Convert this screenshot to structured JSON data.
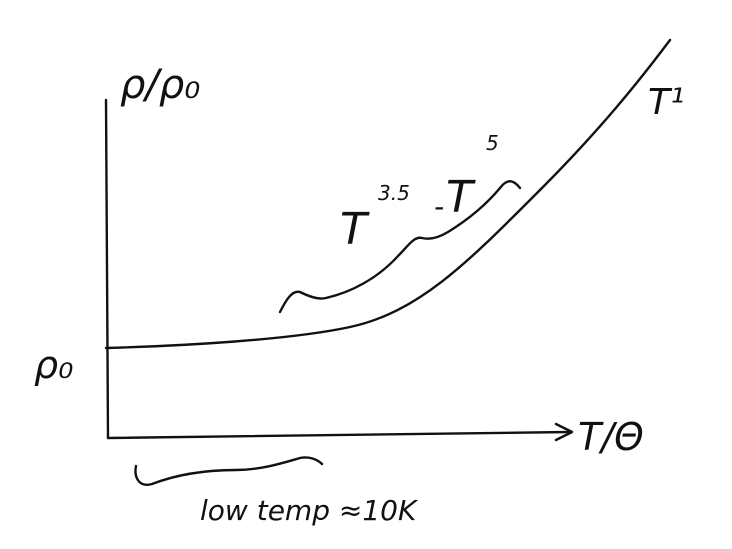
{
  "diagram": {
    "y_axis_label": "ρ/ρ₀",
    "x_axis_label": "T/Θ",
    "rho0_label": "ρ₀",
    "low_temp_label": "low temp ≈10K",
    "mid_region_label_base": "T",
    "mid_region_exp_a": "3.5",
    "mid_region_dash": "-",
    "mid_region_exp_b": "5",
    "high_region_label": "T¹"
  }
}
